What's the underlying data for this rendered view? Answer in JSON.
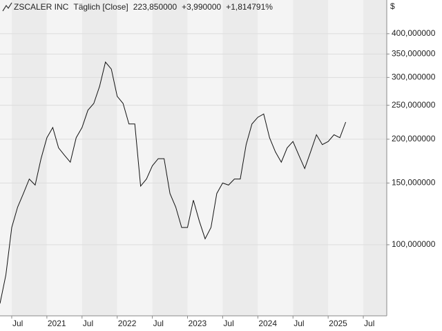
{
  "chart_data": {
    "type": "line",
    "title": "ZSCALER INC",
    "subtitle": "Täglich [Close]",
    "last_price": "223,850000",
    "change": "+3,990000",
    "change_percent": "+1,814791%",
    "y_label": "$",
    "log_scale": true,
    "grid": true,
    "x": [
      "2020-05",
      "2020-06",
      "2020-07",
      "2020-08",
      "2020-09",
      "2020-10",
      "2020-11",
      "2020-12",
      "2021-01",
      "2021-02",
      "2021-03",
      "2021-04",
      "2021-05",
      "2021-06",
      "2021-07",
      "2021-08",
      "2021-09",
      "2021-10",
      "2021-11",
      "2021-12",
      "2022-01",
      "2022-02",
      "2022-03",
      "2022-04",
      "2022-05",
      "2022-06",
      "2022-07",
      "2022-08",
      "2022-09",
      "2022-10",
      "2022-11",
      "2022-12",
      "2023-01",
      "2023-02",
      "2023-03",
      "2023-04",
      "2023-05",
      "2023-06",
      "2023-07",
      "2023-08",
      "2023-09",
      "2023-10",
      "2023-11",
      "2023-12",
      "2024-01",
      "2024-02",
      "2024-03",
      "2024-04",
      "2024-05",
      "2024-06",
      "2024-07",
      "2024-08",
      "2024-09",
      "2024-10",
      "2024-11",
      "2024-12",
      "2025-01",
      "2025-02",
      "2025-03",
      "2025-04"
    ],
    "series": [
      {
        "name": "ZSCALER INC",
        "color": "#111111",
        "values": [
          68,
          82,
          112,
          128,
          140,
          154,
          148,
          176,
          202,
          216,
          189,
          180,
          172,
          202,
          216,
          242,
          253,
          283,
          332,
          317,
          265,
          253,
          221,
          221,
          147,
          154,
          168,
          176,
          176,
          140,
          128,
          112,
          112,
          134,
          117,
          104,
          112,
          140,
          150,
          148,
          154,
          154,
          193,
          221,
          231,
          236,
          202,
          184,
          172,
          189,
          197,
          180,
          165,
          184,
          206,
          193,
          197,
          206,
          202,
          223.85
        ]
      }
    ],
    "xlim": [
      "2020-05",
      "2025-11"
    ],
    "xticks": [
      {
        "value": "2020-07",
        "label": "Jul"
      },
      {
        "value": "2021-01",
        "label": "2021"
      },
      {
        "value": "2021-07",
        "label": "Jul"
      },
      {
        "value": "2022-01",
        "label": "2022"
      },
      {
        "value": "2022-07",
        "label": "Jul"
      },
      {
        "value": "2023-01",
        "label": "2023"
      },
      {
        "value": "2023-07",
        "label": "Jul"
      },
      {
        "value": "2024-01",
        "label": "2024"
      },
      {
        "value": "2024-07",
        "label": "Jul"
      },
      {
        "value": "2025-01",
        "label": "2025"
      },
      {
        "value": "2025-07",
        "label": "Jul"
      }
    ],
    "ylim": [
      62.7,
      499
    ],
    "yticks": [
      {
        "value": 100,
        "label": "100,000000"
      },
      {
        "value": 150,
        "label": "150,000000"
      },
      {
        "value": 200,
        "label": "200,000000"
      },
      {
        "value": 250,
        "label": "250,000000"
      },
      {
        "value": 300,
        "label": "300,000000"
      },
      {
        "value": 350,
        "label": "350,000000"
      },
      {
        "value": 400,
        "label": "400,000000"
      }
    ]
  }
}
